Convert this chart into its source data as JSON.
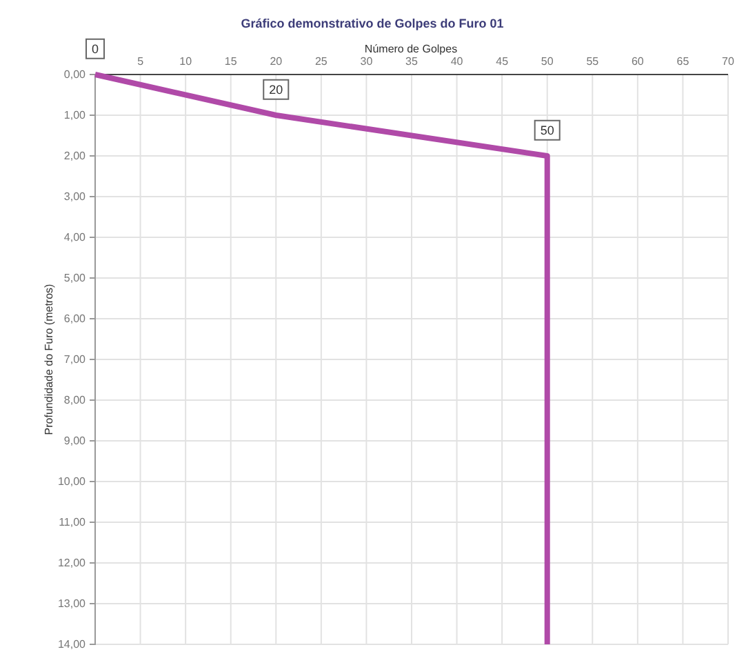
{
  "chart_data": {
    "type": "line",
    "title": "Gráfico demonstrativo de Golpes do Furo 01",
    "xlabel": "Número de Golpes",
    "ylabel": "Profundidade do Furo (metros)",
    "x": [
      0,
      20,
      50,
      50
    ],
    "series": [
      {
        "color": "#b04aa8",
        "values": [
          0,
          1,
          2,
          14
        ]
      }
    ],
    "annotations": [
      {
        "text": "0",
        "x": 0,
        "y": 0
      },
      {
        "text": "20",
        "x": 20,
        "y": 1
      },
      {
        "text": "50",
        "x": 50,
        "y": 2
      }
    ],
    "xlim": [
      0,
      70
    ],
    "xticks": [
      5,
      10,
      15,
      20,
      25,
      30,
      35,
      40,
      45,
      50,
      55,
      60,
      65,
      70
    ],
    "ylim": [
      14,
      0
    ],
    "yticks": [
      {
        "value": 0,
        "label": "0,00"
      },
      {
        "value": 1,
        "label": "1,00"
      },
      {
        "value": 2,
        "label": "2,00"
      },
      {
        "value": 3,
        "label": "3,00"
      },
      {
        "value": 4,
        "label": "4,00"
      },
      {
        "value": 5,
        "label": "5,00"
      },
      {
        "value": 6,
        "label": "6,00"
      },
      {
        "value": 7,
        "label": "7,00"
      },
      {
        "value": 8,
        "label": "8,00"
      },
      {
        "value": 9,
        "label": "9,00"
      },
      {
        "value": 10,
        "label": "10,00"
      },
      {
        "value": 11,
        "label": "11,00"
      },
      {
        "value": 12,
        "label": "12,00"
      },
      {
        "value": 13,
        "label": "13,00"
      },
      {
        "value": 14,
        "label": "14,00"
      }
    ],
    "grid": true,
    "marker": "none",
    "line_style": "solid"
  }
}
